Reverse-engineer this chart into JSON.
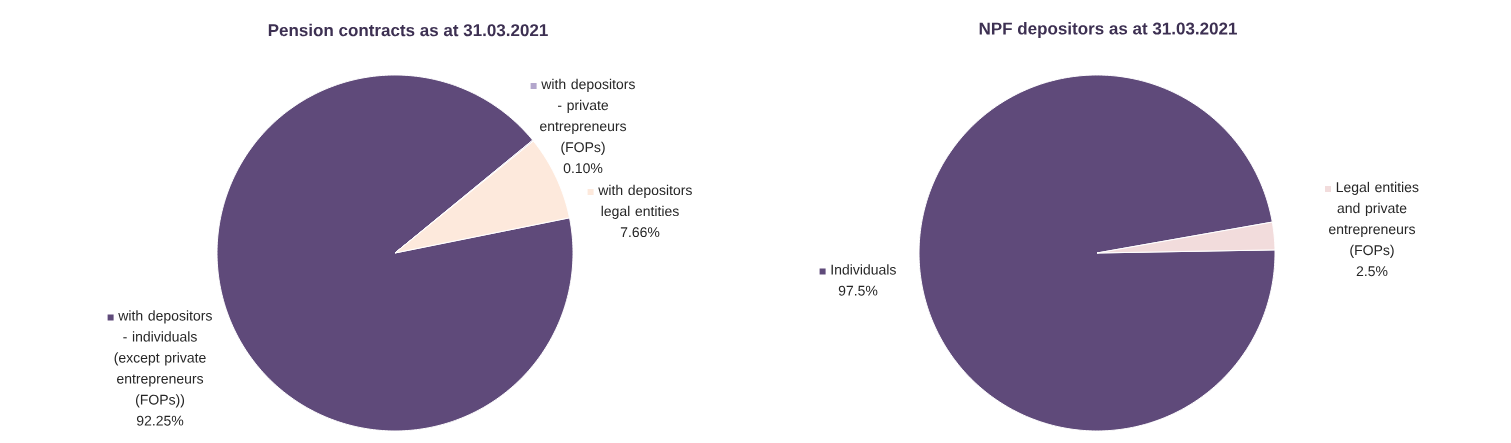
{
  "chart_data": [
    {
      "type": "pie",
      "title": "Pension contracts as at 31.03.2021",
      "categories": [
        "with depositors - individuals (except private entrepreneurs (FOPs))",
        "with depositors - private entrepreneurs (FOPs)",
        "with depositors legal entities"
      ],
      "values": [
        92.25,
        0.1,
        7.66
      ],
      "value_labels": [
        "92.25%",
        "0.10%",
        "7.66%"
      ],
      "colors": [
        "#5f4a7a",
        "#b3a6cc",
        "#fde9dc"
      ],
      "legend": "right"
    },
    {
      "type": "pie",
      "title": "NPF depositors as at 31.03.2021",
      "categories": [
        "Individuals",
        "Legal entities and private entrepreneurs (FOPs)"
      ],
      "values": [
        97.5,
        2.5
      ],
      "value_labels": [
        "97.5%",
        "2.5%"
      ],
      "colors": [
        "#5f4a7a",
        "#f2dcdc"
      ],
      "legend": "right"
    }
  ]
}
